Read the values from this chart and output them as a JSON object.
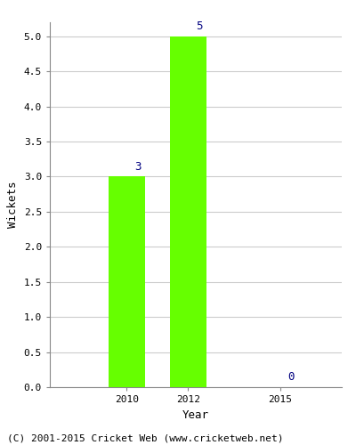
{
  "years": [
    2010,
    2012,
    2015
  ],
  "wickets": [
    3,
    5,
    0
  ],
  "bar_color": "#66ff00",
  "bar_width": 1.2,
  "label_color": "#000080",
  "label_fontsize": 9,
  "xlabel": "Year",
  "ylabel": "Wickets",
  "ylim": [
    0,
    5.2
  ],
  "yticks": [
    0.0,
    0.5,
    1.0,
    1.5,
    2.0,
    2.5,
    3.0,
    3.5,
    4.0,
    4.5,
    5.0
  ],
  "grid_color": "#cccccc",
  "background_color": "#ffffff",
  "footer_text": "(C) 2001-2015 Cricket Web (www.cricketweb.net)",
  "footer_fontsize": 8,
  "axis_label_fontsize": 9,
  "tick_fontsize": 8,
  "xlim": [
    2007.5,
    2017.0
  ]
}
